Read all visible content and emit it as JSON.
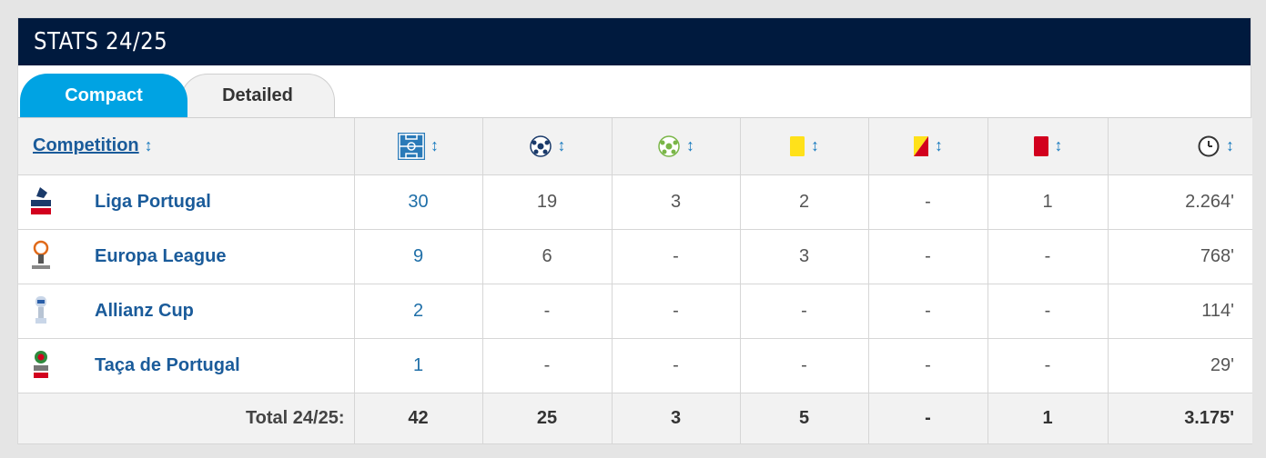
{
  "header": {
    "title": "STATS 24/25"
  },
  "tabs": [
    {
      "label": "Compact",
      "active": true
    },
    {
      "label": "Detailed",
      "active": false
    }
  ],
  "columns": {
    "competition": "Competition",
    "icons": [
      "pitch-icon",
      "ball-icon",
      "assist-ball-icon",
      "yellow-card-icon",
      "second-yellow-card-icon",
      "red-card-icon",
      "clock-icon"
    ]
  },
  "rows": [
    {
      "name": "Liga Portugal",
      "logo": "liga-portugal-logo",
      "apps": "30",
      "goals": "19",
      "assists": "3",
      "yellow": "2",
      "second_yellow": "-",
      "red": "1",
      "minutes": "2.264'"
    },
    {
      "name": "Europa League",
      "logo": "europa-league-logo",
      "apps": "9",
      "goals": "6",
      "assists": "-",
      "yellow": "3",
      "second_yellow": "-",
      "red": "-",
      "minutes": "768'"
    },
    {
      "name": "Allianz Cup",
      "logo": "allianz-cup-logo",
      "apps": "2",
      "goals": "-",
      "assists": "-",
      "yellow": "-",
      "second_yellow": "-",
      "red": "-",
      "minutes": "114'"
    },
    {
      "name": "Taça de Portugal",
      "logo": "taca-de-portugal-logo",
      "apps": "1",
      "goals": "-",
      "assists": "-",
      "yellow": "-",
      "second_yellow": "-",
      "red": "-",
      "minutes": "29'"
    }
  ],
  "total": {
    "label": "Total 24/25:",
    "apps": "42",
    "goals": "25",
    "assists": "3",
    "yellow": "5",
    "second_yellow": "-",
    "red": "1",
    "minutes": "3.175'"
  },
  "colors": {
    "header_bg": "#001a3e",
    "tab_active": "#00a3e3",
    "link": "#1a5b9a",
    "yellow_card": "#ffe11a",
    "red_card": "#d2001e"
  }
}
